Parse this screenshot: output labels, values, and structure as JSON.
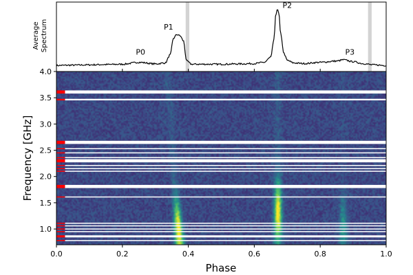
{
  "chart_data": [
    {
      "type": "line",
      "panel": "top",
      "ylabel_line1": "Average",
      "ylabel_line2": "Spectrum",
      "xlim": [
        0.0,
        1.0
      ],
      "x": [
        0.0,
        0.05,
        0.1,
        0.15,
        0.2,
        0.25,
        0.3,
        0.33,
        0.345,
        0.355,
        0.365,
        0.375,
        0.385,
        0.395,
        0.41,
        0.45,
        0.5,
        0.55,
        0.6,
        0.63,
        0.65,
        0.66,
        0.665,
        0.67,
        0.675,
        0.68,
        0.69,
        0.7,
        0.72,
        0.75,
        0.8,
        0.85,
        0.87,
        0.9,
        0.93,
        0.96,
        1.0
      ],
      "y": [
        0.03,
        0.035,
        0.04,
        0.045,
        0.05,
        0.08,
        0.055,
        0.07,
        0.2,
        0.46,
        0.52,
        0.5,
        0.42,
        0.1,
        0.05,
        0.05,
        0.05,
        0.055,
        0.06,
        0.08,
        0.16,
        0.45,
        0.82,
        0.93,
        0.84,
        0.52,
        0.22,
        0.11,
        0.07,
        0.06,
        0.08,
        0.1,
        0.12,
        0.09,
        0.06,
        0.04,
        0.03
      ],
      "shaded_phase_bands": [
        [
          0.392,
          0.403
        ],
        [
          0.945,
          0.956
        ]
      ],
      "color": "#000000",
      "band_color": "#d3d3d3"
    },
    {
      "type": "heatmap",
      "panel": "main",
      "xlabel": "Phase",
      "ylabel": "Frequency [GHz]",
      "xlim": [
        0.0,
        1.0
      ],
      "ylim": [
        0.7,
        4.0
      ],
      "xticks": [
        "0.0",
        "0.2",
        "0.4",
        "0.6",
        "0.8",
        "1.0"
      ],
      "yticks": [
        "1.0",
        "1.5",
        "2.0",
        "2.5",
        "3.0",
        "3.5",
        "4.0"
      ],
      "colormap": "viridis",
      "background_color": "#30478f",
      "components": [
        {
          "phase_center": 0.37,
          "freq_peak_GHz": 0.98,
          "peak_intensity": 1.0
        },
        {
          "phase_center": 0.672,
          "freq_peak_GHz": 1.3,
          "peak_intensity": 1.0
        },
        {
          "phase_center": 0.87,
          "freq_peak_GHz": 1.05,
          "peak_intensity": 0.35
        }
      ],
      "masked_channels_GHz": [
        [
          3.58,
          3.64
        ],
        [
          3.45,
          3.48
        ],
        [
          2.62,
          2.68
        ],
        [
          2.52,
          2.54
        ],
        [
          2.44,
          2.46
        ],
        [
          2.35,
          2.37
        ],
        [
          2.27,
          2.33
        ],
        [
          2.2,
          2.22
        ],
        [
          2.14,
          2.16
        ],
        [
          2.09,
          2.11
        ],
        [
          1.78,
          1.84
        ],
        [
          1.6,
          1.62
        ],
        [
          1.1,
          1.12
        ],
        [
          1.05,
          1.07
        ],
        [
          0.99,
          1.01
        ],
        [
          0.94,
          0.96
        ],
        [
          0.84,
          0.88
        ],
        [
          0.77,
          0.79
        ]
      ],
      "mask_color": "#ffffff",
      "flag_color": "#ff0000"
    }
  ],
  "annotations": [
    {
      "label": "P0",
      "phase": 0.255,
      "level": 0.2
    },
    {
      "label": "P1",
      "phase": 0.34,
      "level": 0.6
    },
    {
      "label": "P2",
      "phase": 0.7,
      "level": 0.94
    },
    {
      "label": "P3",
      "phase": 0.89,
      "level": 0.2
    }
  ]
}
